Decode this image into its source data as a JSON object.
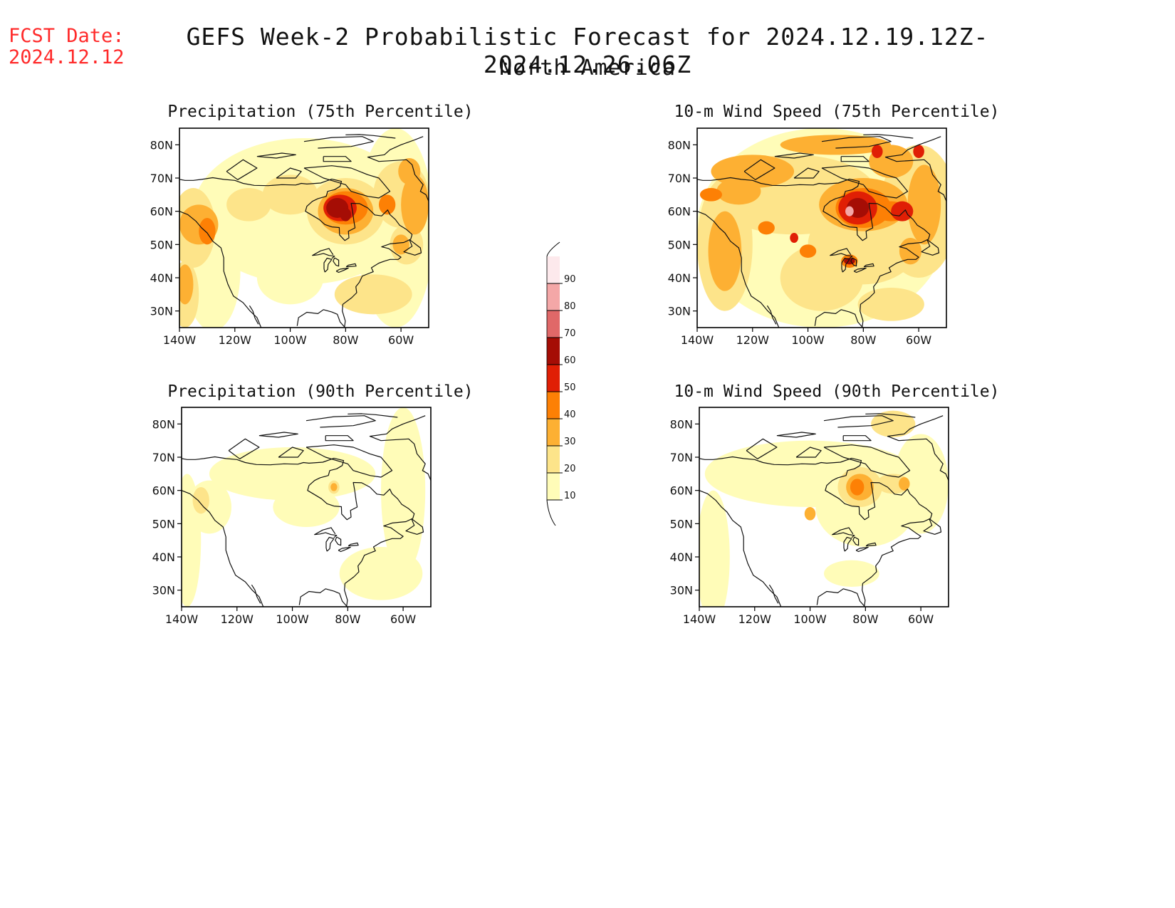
{
  "header": {
    "fcst_label": "FCST Date:",
    "fcst_date": "2024.12.12",
    "title": "GEFS Week-2 Probabilistic Forecast for 2024.12.19.12Z-2024.12.26.06Z",
    "subtitle": "North America"
  },
  "axes": {
    "lat_ticks": [
      "80N",
      "70N",
      "60N",
      "50N",
      "40N",
      "30N"
    ],
    "lon_ticks": [
      "140W",
      "120W",
      "100W",
      "80W",
      "60W"
    ]
  },
  "panels": [
    {
      "id": "precip75",
      "title": "Precipitation (75th Percentile)"
    },
    {
      "id": "wind75",
      "title": "10-m Wind Speed (75th Percentile)"
    },
    {
      "id": "precip90",
      "title": "Precipitation (90th Percentile)"
    },
    {
      "id": "wind90",
      "title": "10-m Wind Speed (90th Percentile)"
    }
  ],
  "colorbar": {
    "levels": [
      "10",
      "20",
      "30",
      "40",
      "50",
      "60",
      "70",
      "80",
      "90"
    ],
    "colors": [
      "#fffcb8",
      "#fde48a",
      "#fdb033",
      "#fd8005",
      "#e01f05",
      "#a50d05",
      "#e06868",
      "#f4a7a7",
      "#fde9ec"
    ]
  }
}
